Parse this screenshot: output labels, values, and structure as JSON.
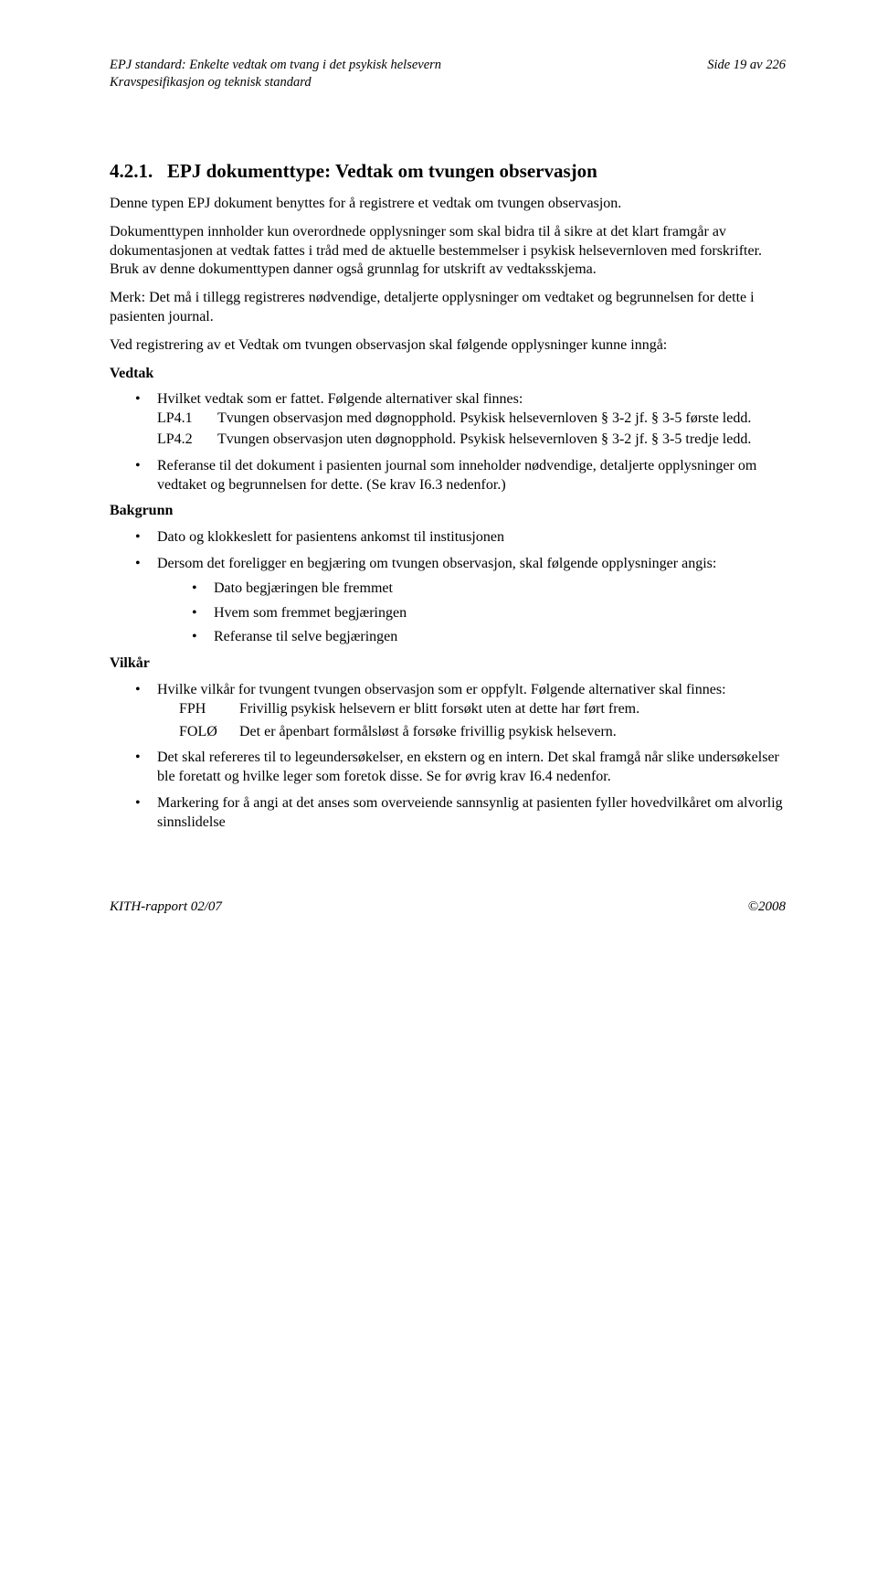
{
  "header": {
    "left_line1": "EPJ standard: Enkelte vedtak om tvang i det psykisk helsevern",
    "left_line2": "Kravspesifikasjon og teknisk standard",
    "right": "Side 19 av 226"
  },
  "section": {
    "number": "4.2.1.",
    "title": "EPJ dokumenttype: Vedtak om tvungen observasjon"
  },
  "body": {
    "p1": "Denne typen EPJ dokument benyttes for å registrere et vedtak om tvungen observasjon.",
    "p2": "Dokumenttypen innholder kun overordnede opplysninger som skal bidra til å sikre at det klart framgår av dokumentasjonen at vedtak fattes i tråd med de aktuelle bestemmelser i psykisk helsevernloven med forskrifter. Bruk av denne dokumenttypen danner også grunnlag for utskrift av vedtaksskjema.",
    "p3": "Merk: Det må i tillegg registreres nødvendige, detaljerte opplysninger om vedtaket og begrunnelsen for dette i pasienten journal.",
    "p4": "Ved registrering av et Vedtak om tvungen observasjon skal følgende opplysninger kunne inngå:"
  },
  "vedtak": {
    "label": "Vedtak",
    "b1_intro": "Hvilket vedtak som er fattet. Følgende alternativer skal finnes:",
    "lp41_code": "LP4.1",
    "lp41_text": "Tvungen observasjon med døgnopphold. Psykisk helsevernloven § 3-2 jf. § 3-5 første ledd.",
    "lp42_code": "LP4.2",
    "lp42_text": "Tvungen observasjon uten døgnopphold. Psykisk helsevernloven § 3-2 jf. § 3-5 tredje ledd.",
    "b2": "Referanse til det dokument i pasienten journal som inneholder nødvendige, detaljerte opplysninger om vedtaket og begrunnelsen for dette. (Se krav I6.3 nedenfor.)"
  },
  "bakgrunn": {
    "label": "Bakgrunn",
    "b1": "Dato og klokkeslett for pasientens ankomst til institusjonen",
    "b2": "Dersom det foreligger en begjæring om tvungen observasjon, skal følgende opplysninger angis:",
    "s1": "Dato begjæringen ble fremmet",
    "s2": "Hvem som fremmet begjæringen",
    "s3": "Referanse til selve begjæringen"
  },
  "vilkar": {
    "label": "Vilkår",
    "b1": "Hvilke vilkår for tvungent tvungen observasjon som er oppfylt. Følgende alternativer skal finnes:",
    "fph_code": "FPH",
    "fph_text": "Frivillig psykisk helsevern er blitt forsøkt uten at dette har ført frem.",
    "folo_code": "FOLØ",
    "folo_text": "Det er åpenbart formålsløst å forsøke frivillig psykisk helsevern.",
    "b2": "Det skal refereres til to legeundersøkelser, en ekstern og en intern. Det skal framgå når slike undersøkelser ble foretatt og hvilke leger som foretok disse. Se for øvrig krav I6.4 nedenfor.",
    "b3": "Markering for å angi at det anses som overveiende sannsynlig at pasienten fyller hovedvilkåret om alvorlig sinnslidelse"
  },
  "footer": {
    "left": "KITH-rapport 02/07",
    "right": "©2008"
  }
}
